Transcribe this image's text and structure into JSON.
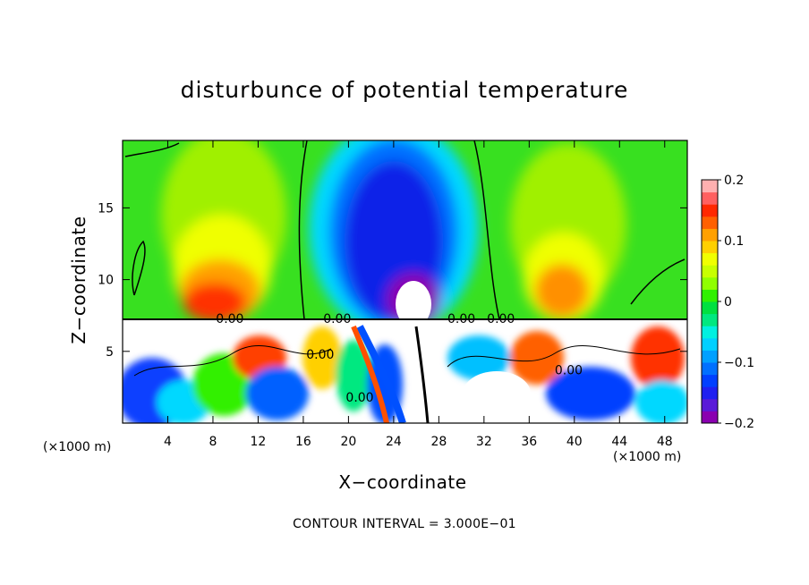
{
  "chart_data": {
    "type": "heatmap",
    "title": "disturbunce of potential temperature",
    "xlabel": "X−coordinate",
    "ylabel": "Z−coordinate",
    "x_unit_left": "(×1000 m)",
    "x_unit_right": "(×1000 m)",
    "footer": "CONTOUR INTERVAL = 3.000E−01",
    "xlim": [
      0,
      50
    ],
    "ylim": [
      0,
      19.7
    ],
    "xticks": [
      "4",
      "8",
      "12",
      "16",
      "20",
      "24",
      "28",
      "32",
      "36",
      "40",
      "44",
      "48"
    ],
    "yticks": [
      "5",
      "10",
      "15"
    ],
    "colorbar": {
      "range": [
        -0.2,
        0.2
      ],
      "tick_labels": [
        "0.2",
        "0.1",
        "0",
        "−0.1",
        "−0.2"
      ],
      "colors": [
        "#8a00b0",
        "#5a1ad8",
        "#2020f0",
        "#0040ff",
        "#0070ff",
        "#00a0ff",
        "#00d0ff",
        "#00f0e0",
        "#00e880",
        "#00e040",
        "#30f000",
        "#90ff00",
        "#c8ff00",
        "#f0ff00",
        "#ffd000",
        "#ffa000",
        "#ff6000",
        "#ff2800",
        "#ff6060",
        "#ffb0b0"
      ]
    },
    "contour_labels": [
      "0.00",
      "0.00",
      "0.00",
      "0.00",
      "0.00",
      "0.00",
      "0.00"
    ],
    "features": [
      {
        "name": "cold anomaly",
        "x_center": 24,
        "z_range": [
          7.5,
          19.7
        ],
        "value": -0.19
      },
      {
        "name": "warm anomaly",
        "x_center": 9,
        "z_range": [
          7.5,
          14
        ],
        "value": 0.13
      },
      {
        "name": "warm anomaly",
        "x_center": 39,
        "z_range": [
          7.5,
          14
        ],
        "value": 0.11
      },
      {
        "name": "turbulent layer",
        "z_range": [
          0,
          7.2
        ]
      }
    ]
  }
}
